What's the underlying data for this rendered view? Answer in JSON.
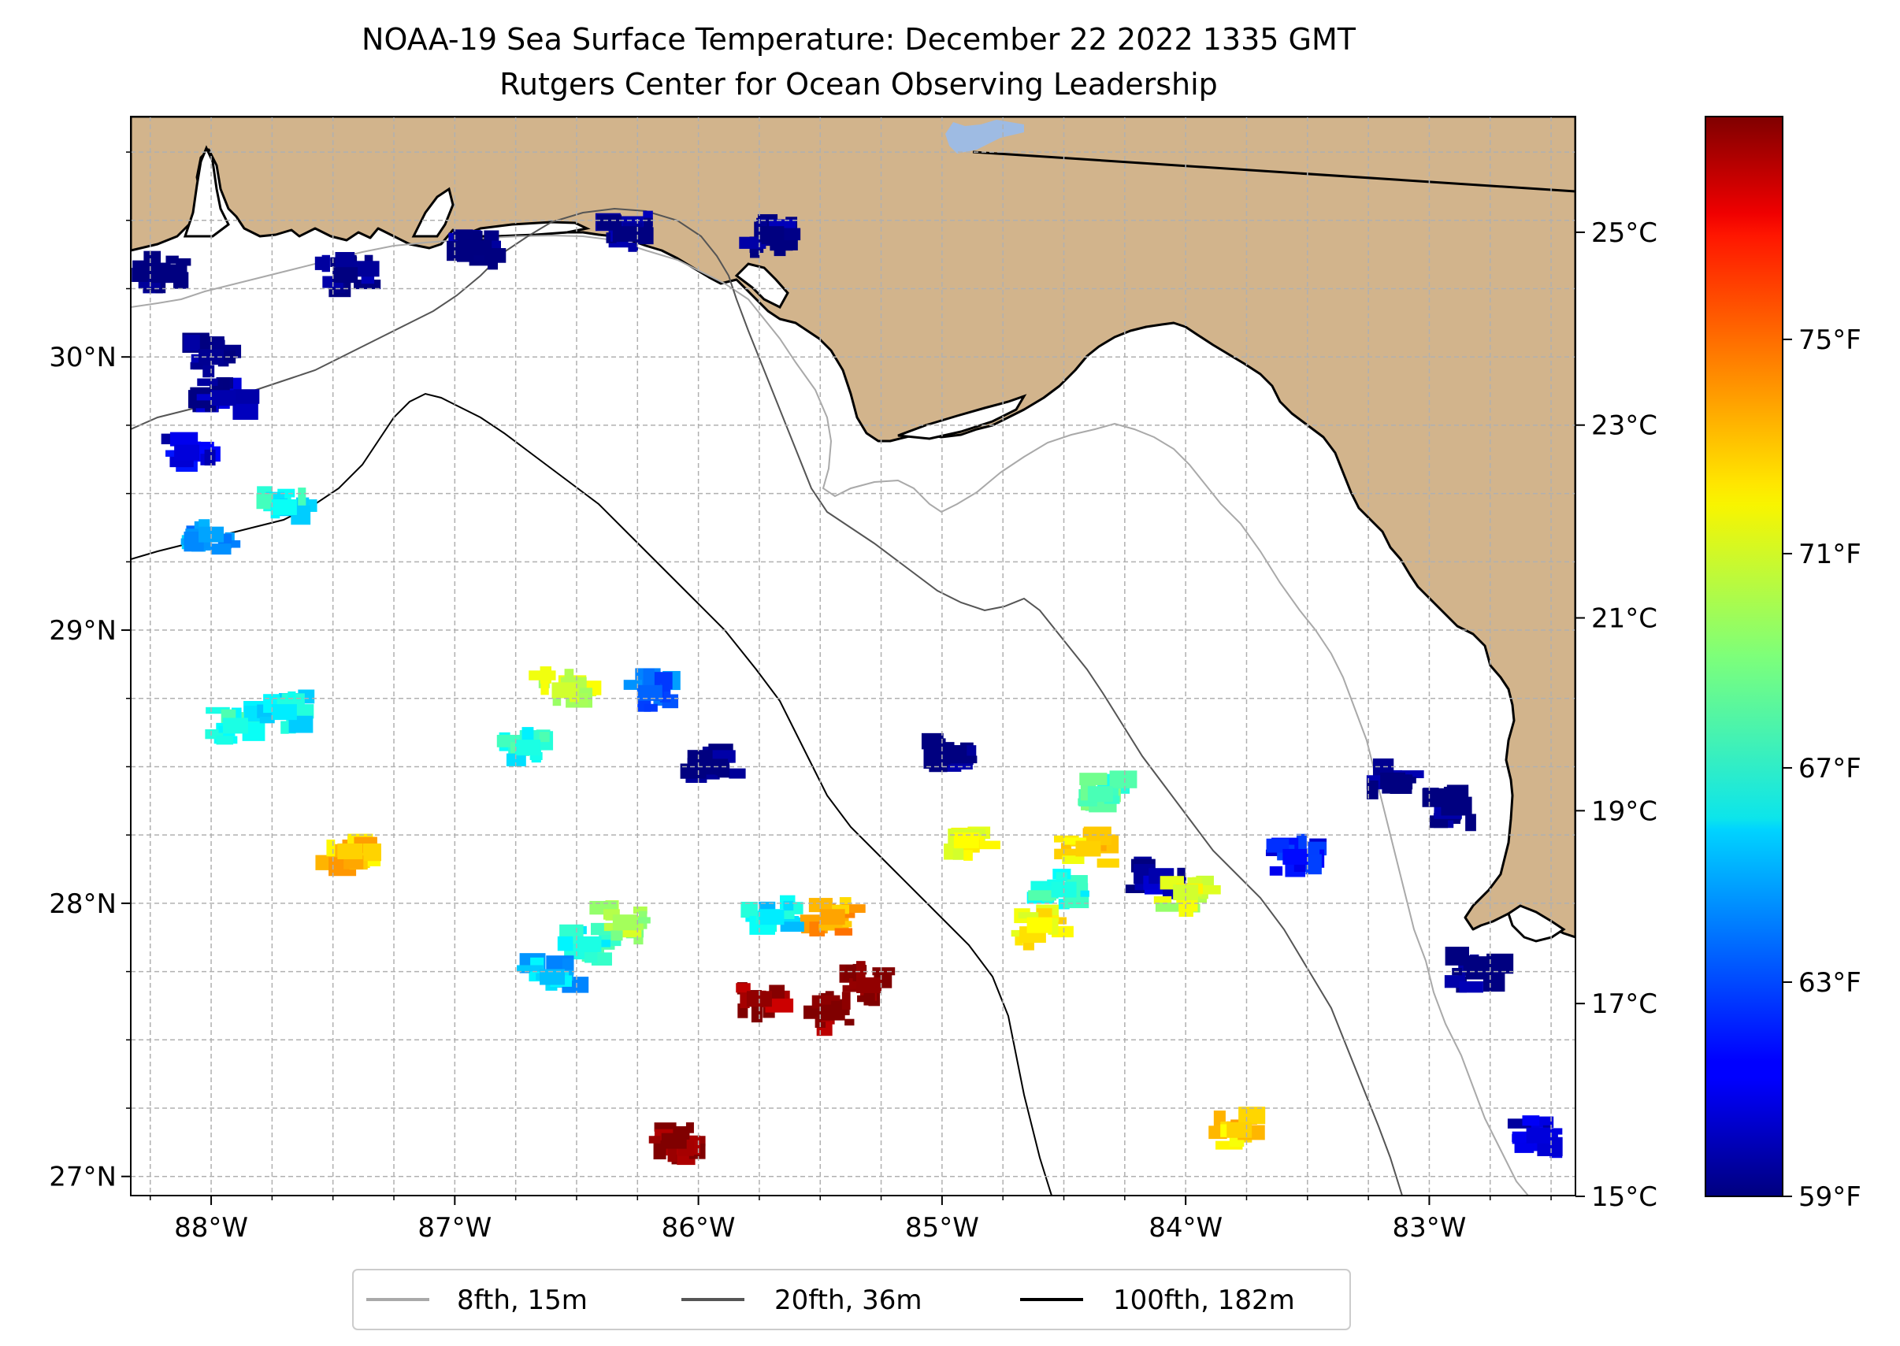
{
  "title_line1": "NOAA-19 Sea Surface Temperature: December 22 2022 1335 GMT",
  "title_line2": "Rutgers Center for Ocean Observing Leadership",
  "map": {
    "lon_range": [
      -88.33,
      -82.4
    ],
    "lat_range": [
      26.93,
      30.88
    ],
    "lon_ticks": [
      {
        "value": -88,
        "label": "88°W"
      },
      {
        "value": -87,
        "label": "87°W"
      },
      {
        "value": -86,
        "label": "86°W"
      },
      {
        "value": -85,
        "label": "85°W"
      },
      {
        "value": -84,
        "label": "84°W"
      },
      {
        "value": -83,
        "label": "83°W"
      }
    ],
    "lat_ticks": [
      {
        "value": 27,
        "label": "27°N"
      },
      {
        "value": 28,
        "label": "28°N"
      },
      {
        "value": 29,
        "label": "29°N"
      },
      {
        "value": 30,
        "label": "30°N"
      }
    ],
    "grid": "dashed, every 0.25°",
    "land_color": "#d2b48c",
    "ocean_color": "#ffffff"
  },
  "legend": {
    "placement": "bottom-center",
    "items": [
      {
        "label": "8fth, 15m",
        "color": "#a9a9a9"
      },
      {
        "label": "20fth, 36m",
        "color": "#555555"
      },
      {
        "label": "100fth, 182m",
        "color": "#000000"
      }
    ]
  },
  "colorbar": {
    "colormap": "jet",
    "range_c": [
      15,
      26.2
    ],
    "celsius_ticks": [
      {
        "value": 15,
        "label": "15°C"
      },
      {
        "value": 17,
        "label": "17°C"
      },
      {
        "value": 19,
        "label": "19°C"
      },
      {
        "value": 21,
        "label": "21°C"
      },
      {
        "value": 23,
        "label": "23°C"
      },
      {
        "value": 25,
        "label": "25°C"
      }
    ],
    "fahrenheit_ticks": [
      {
        "value": 59,
        "label": "59°F"
      },
      {
        "value": 63,
        "label": "63°F"
      },
      {
        "value": 67,
        "label": "67°F"
      },
      {
        "value": 71,
        "label": "71°F"
      },
      {
        "value": 75,
        "label": "75°F"
      }
    ]
  },
  "sst_patches_c": [
    {
      "lon": -88.0,
      "lat": 30.0,
      "temp": 15.2
    },
    {
      "lon": -87.95,
      "lat": 29.85,
      "temp": 15.5
    },
    {
      "lon": -88.1,
      "lat": 29.65,
      "temp": 16.0
    },
    {
      "lon": -88.0,
      "lat": 29.35,
      "temp": 18.2
    },
    {
      "lon": -87.7,
      "lat": 29.45,
      "temp": 19.3
    },
    {
      "lon": -88.2,
      "lat": 30.3,
      "temp": 15.0
    },
    {
      "lon": -87.45,
      "lat": 30.3,
      "temp": 15.0
    },
    {
      "lon": -86.9,
      "lat": 30.4,
      "temp": 15.0
    },
    {
      "lon": -86.3,
      "lat": 30.45,
      "temp": 15.0
    },
    {
      "lon": -85.7,
      "lat": 30.45,
      "temp": 15.0
    },
    {
      "lon": -87.9,
      "lat": 28.65,
      "temp": 19.5
    },
    {
      "lon": -87.7,
      "lat": 28.7,
      "temp": 19.0
    },
    {
      "lon": -86.55,
      "lat": 28.78,
      "temp": 21.5
    },
    {
      "lon": -86.2,
      "lat": 28.77,
      "temp": 17.5
    },
    {
      "lon": -86.45,
      "lat": 27.85,
      "temp": 19.5
    },
    {
      "lon": -86.3,
      "lat": 27.93,
      "temp": 21.0
    },
    {
      "lon": -86.6,
      "lat": 27.73,
      "temp": 18.5
    },
    {
      "lon": -85.45,
      "lat": 27.6,
      "temp": 26.2
    },
    {
      "lon": -85.75,
      "lat": 27.65,
      "temp": 26.0
    },
    {
      "lon": -85.3,
      "lat": 27.7,
      "temp": 26.0
    },
    {
      "lon": -85.45,
      "lat": 27.95,
      "temp": 23.0
    },
    {
      "lon": -85.7,
      "lat": 27.95,
      "temp": 19.0
    },
    {
      "lon": -86.1,
      "lat": 27.13,
      "temp": 26.2
    },
    {
      "lon": -84.4,
      "lat": 28.2,
      "temp": 22.5
    },
    {
      "lon": -84.5,
      "lat": 28.05,
      "temp": 19.5
    },
    {
      "lon": -84.6,
      "lat": 27.92,
      "temp": 22.0
    },
    {
      "lon": -84.35,
      "lat": 28.4,
      "temp": 20.0
    },
    {
      "lon": -84.1,
      "lat": 28.1,
      "temp": 15.5
    },
    {
      "lon": -84.0,
      "lat": 28.04,
      "temp": 21.5
    },
    {
      "lon": -84.9,
      "lat": 28.23,
      "temp": 22.0
    },
    {
      "lon": -83.55,
      "lat": 28.17,
      "temp": 16.5
    },
    {
      "lon": -82.9,
      "lat": 28.35,
      "temp": 15.0
    },
    {
      "lon": -83.15,
      "lat": 28.45,
      "temp": 15.0
    },
    {
      "lon": -82.8,
      "lat": 27.75,
      "temp": 15.0
    },
    {
      "lon": -82.55,
      "lat": 27.15,
      "temp": 16.0
    },
    {
      "lon": -84.95,
      "lat": 28.55,
      "temp": 15.0
    },
    {
      "lon": -85.93,
      "lat": 28.5,
      "temp": 15.0
    },
    {
      "lon": -87.43,
      "lat": 28.19,
      "temp": 22.5
    },
    {
      "lon": -86.7,
      "lat": 28.57,
      "temp": 19.5
    },
    {
      "lon": -83.78,
      "lat": 27.17,
      "temp": 22.5
    }
  ]
}
